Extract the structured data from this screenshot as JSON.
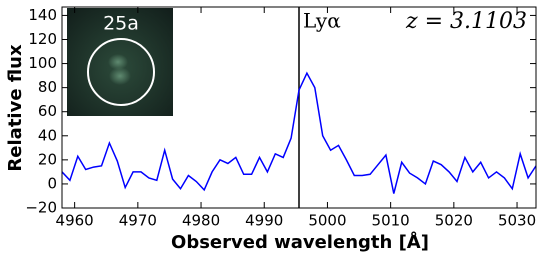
{
  "chart_data": {
    "type": "line",
    "x_label": "Observed wavelength [Å]",
    "y_label": "Relative flux",
    "line_label": "Lyα",
    "redshift_label": "z = 3.1103",
    "inset_label": "25a",
    "line_x": 4995.5,
    "xlim": [
      4958,
      5033
    ],
    "ylim": [
      -20,
      147
    ],
    "xticks": [
      4960,
      4970,
      4980,
      4990,
      5000,
      5010,
      5020,
      5030
    ],
    "yticks": [
      {
        "value": -20,
        "label": "−20"
      },
      0,
      20,
      40,
      60,
      80,
      100,
      120,
      140
    ],
    "grid": false,
    "x": [
      4958,
      4959.25,
      4960.5,
      4961.75,
      4963,
      4964.25,
      4965.5,
      4966.75,
      4968,
      4969.25,
      4970.5,
      4971.75,
      4973,
      4974.25,
      4975.5,
      4976.75,
      4978,
      4979.25,
      4980.5,
      4981.75,
      4983,
      4984.25,
      4985.5,
      4986.75,
      4988,
      4989.25,
      4990.5,
      4991.75,
      4993,
      4994.25,
      4995.5,
      4996.75,
      4998,
      4999.25,
      5000.5,
      5001.75,
      5003,
      5004.25,
      5005.5,
      5006.75,
      5008,
      5009.25,
      5010.5,
      5011.75,
      5013,
      5014.25,
      5015.5,
      5016.75,
      5018,
      5019.25,
      5020.5,
      5021.75,
      5023,
      5024.25,
      5025.5,
      5026.75,
      5028,
      5029.25,
      5030.5,
      5031.75,
      5033
    ],
    "series": [
      {
        "color": "#0000ff",
        "values": [
          10,
          3,
          23,
          12,
          14,
          15,
          34,
          19,
          -3,
          10,
          10,
          5,
          3,
          28,
          4,
          -4,
          7,
          2,
          -5,
          10,
          20,
          17,
          22,
          8,
          8,
          22,
          10,
          25,
          22,
          38,
          78,
          92,
          80,
          40,
          28,
          32,
          20,
          7,
          7,
          8,
          16,
          24,
          -8,
          18,
          9,
          5,
          0,
          19,
          16,
          10,
          2,
          22,
          10,
          18,
          5,
          10,
          5,
          -4,
          25,
          5,
          15
        ]
      }
    ]
  }
}
